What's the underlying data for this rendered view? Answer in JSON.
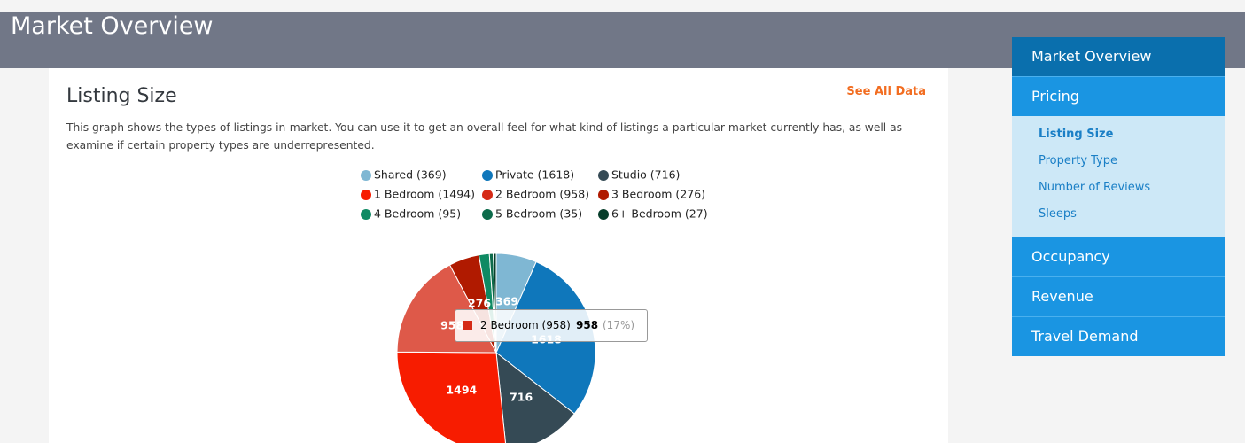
{
  "header": {
    "title": "Market Overview"
  },
  "card": {
    "title": "Listing Size",
    "link": "See All Data",
    "description": "This graph shows the types of listings in-market. You can use it to get an overall feel for what kind of listings a particular market currently has, as well as examine if certain property types are underrepresented."
  },
  "chart_data": {
    "type": "pie",
    "categories": [
      "Shared (369)",
      "Private (1618)",
      "Studio (716)",
      "1 Bedroom (1494)",
      "2 Bedroom (958)",
      "3 Bedroom (276)",
      "4 Bedroom (95)",
      "5 Bedroom (35)",
      "6+ Bedroom (27)"
    ],
    "values": [
      369,
      1618,
      716,
      1494,
      958,
      276,
      95,
      35,
      27
    ],
    "colors": [
      "#7fb7d3",
      "#0f77bb",
      "#354a55",
      "#f71c00",
      "#d52a16",
      "#b01a00",
      "#0f8a63",
      "#0d6b4b",
      "#073e2b"
    ],
    "tooltip_percent": "(17%)"
  },
  "sidebar": {
    "items": [
      "Market Overview",
      "Pricing",
      "Occupancy",
      "Revenue",
      "Travel Demand"
    ],
    "submenu": [
      "Listing Size",
      "Property Type",
      "Number of Reviews",
      "Sleeps"
    ]
  }
}
